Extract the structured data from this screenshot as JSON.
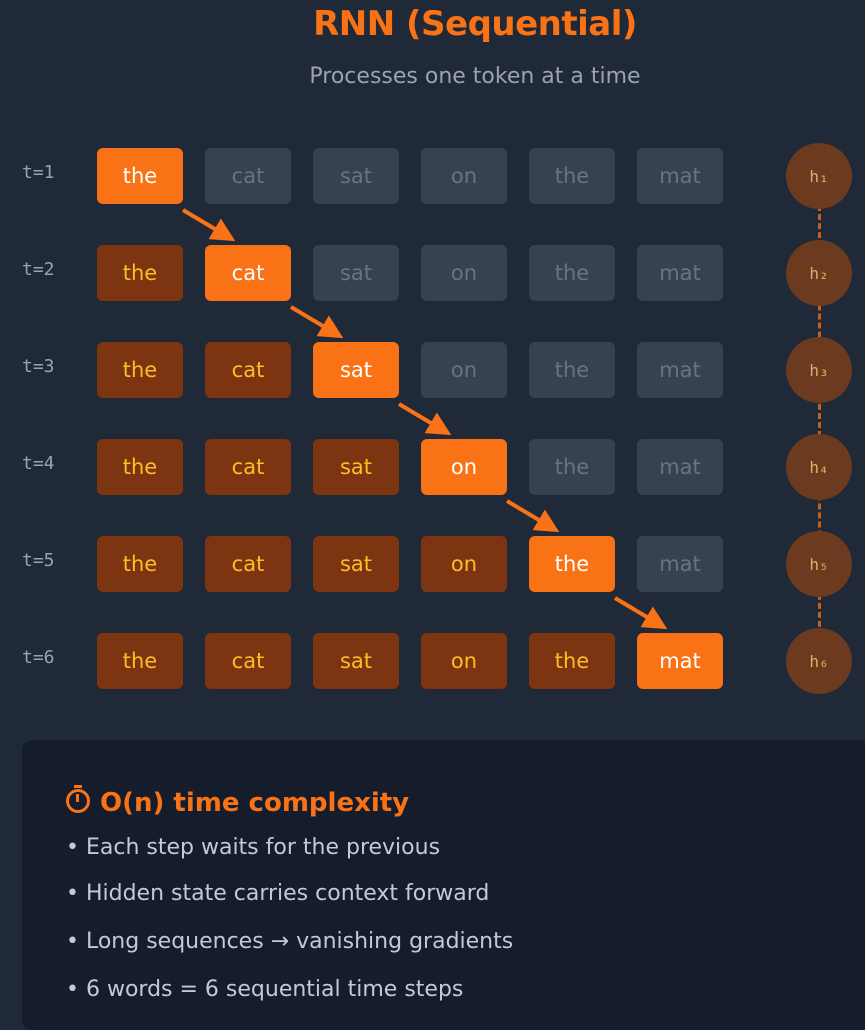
{
  "title": "RNN (Sequential)",
  "subtitle": "Processes one token at a time",
  "accent": "#f97316",
  "tokens": [
    "the",
    "cat",
    "sat",
    "on",
    "the",
    "mat"
  ],
  "steps": [
    {
      "label": "t=1",
      "hidden": "h₁"
    },
    {
      "label": "t=2",
      "hidden": "h₂"
    },
    {
      "label": "t=3",
      "hidden": "h₃"
    },
    {
      "label": "t=4",
      "hidden": "h₄"
    },
    {
      "label": "t=5",
      "hidden": "h₅"
    },
    {
      "label": "t=6",
      "hidden": "h₆"
    }
  ],
  "panel": {
    "icon": "stopwatch-icon",
    "title": "O(n) time complexity",
    "bullets": [
      "• Each step waits for the previous",
      "• Hidden state carries context forward",
      "• Long sequences → vanishing gradients",
      "• 6 words = 6 sequential time steps"
    ]
  }
}
